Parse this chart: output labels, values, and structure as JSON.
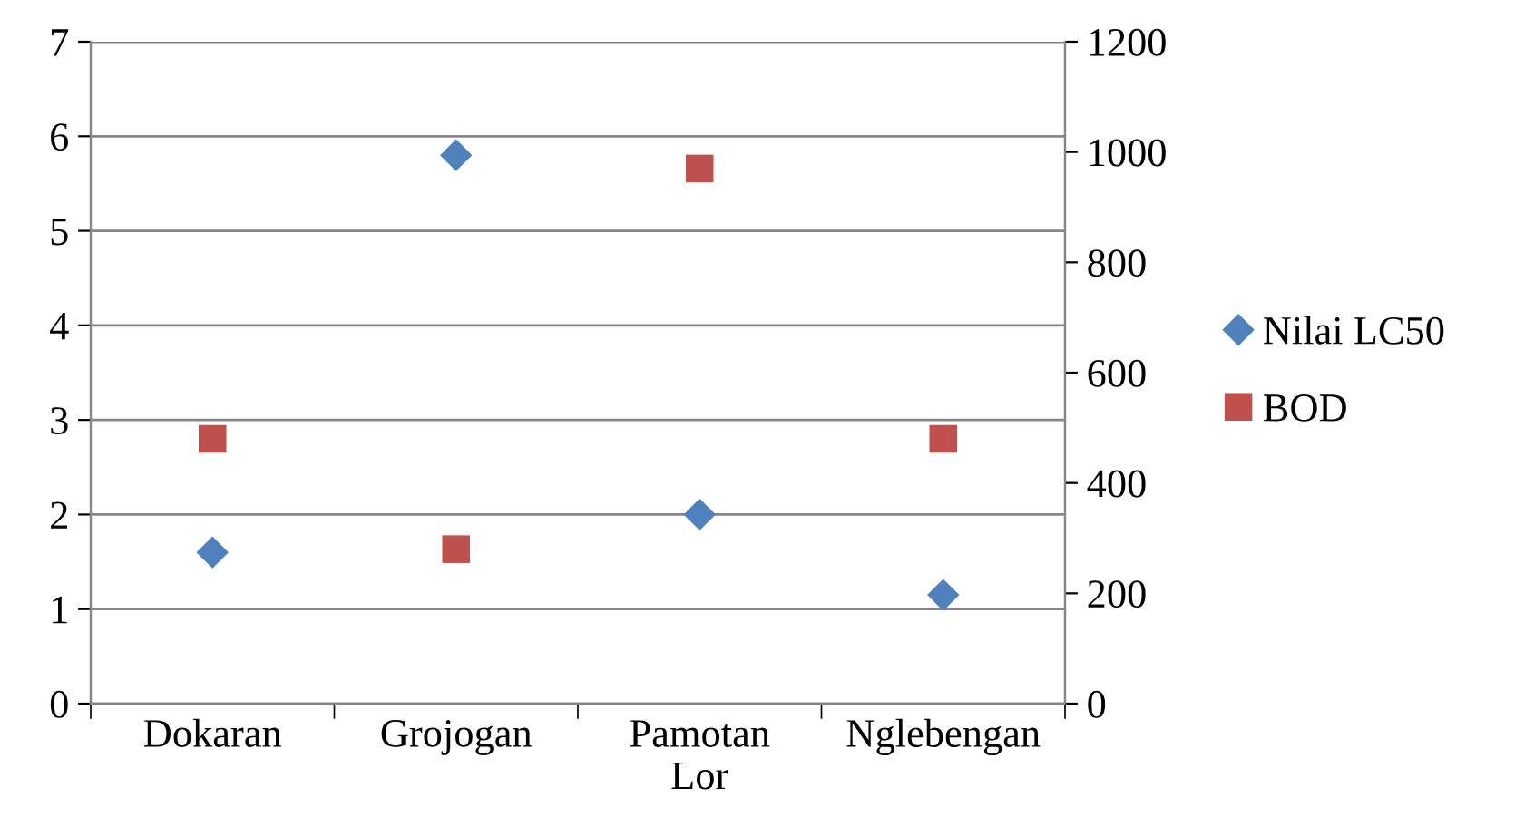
{
  "chart_data": {
    "type": "scatter",
    "categories": [
      "Dokaran",
      "Grojogan",
      "Pamotan Lor",
      "Nglebengan"
    ],
    "series": [
      {
        "name": "Nilai LC50",
        "color": "#4f81bd",
        "marker": "diamond",
        "values": [
          1.6,
          5.8,
          2.0,
          1.15
        ]
      },
      {
        "name": "BOD",
        "color": "#c0504d",
        "marker": "square",
        "axis": "y2",
        "values": [
          480,
          280,
          970,
          480
        ]
      }
    ],
    "ylim": [
      0,
      7
    ],
    "yticks": [
      0,
      1,
      2,
      3,
      4,
      5,
      6,
      7
    ],
    "y2lim": [
      0,
      1200
    ],
    "y2ticks": [
      0,
      200,
      400,
      600,
      800,
      1000,
      1200
    ],
    "grid": "y",
    "legend": "right"
  }
}
